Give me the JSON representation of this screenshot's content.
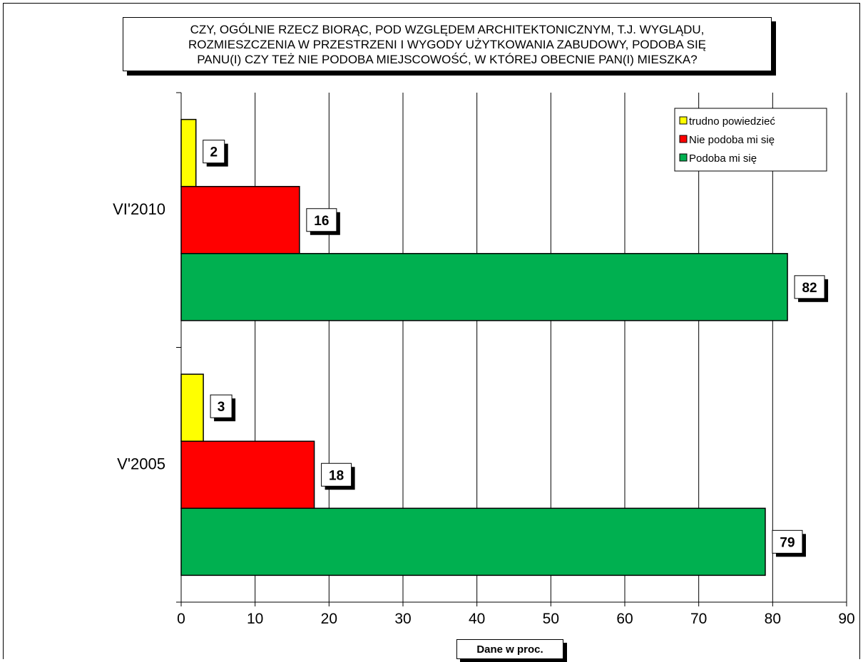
{
  "chart_data": {
    "type": "bar",
    "orientation": "horizontal",
    "title": "CZY, OGÓLNIE RZECZ BIORĄC, POD WZGLĘDEM ARCHITEKTONICZNYM, T.J. WYGLĄDU,\nROZMIESZCZENIA W PRZESTRZENI I WYGODY UŻYTKOWANIA ZABUDOWY, PODOBA SIĘ\nPANU(I) CZY TEŻ NIE PODOBA MIEJSCOWOŚĆ, W KTÓREJ OBECNIE PAN(I) MIESZKA?",
    "xlabel": "Dane w proc.",
    "categories": [
      "VI'2010",
      "V'2005"
    ],
    "series": [
      {
        "name": "trudno powiedzieć",
        "color": "#ffff00",
        "values": [
          2,
          3
        ]
      },
      {
        "name": "Nie podoba mi się",
        "color": "#ff0000",
        "values": [
          16,
          18
        ]
      },
      {
        "name": "Podoba mi się",
        "color": "#00b050",
        "values": [
          82,
          79
        ]
      }
    ],
    "xlim": [
      0,
      90
    ],
    "xticks": [
      0,
      10,
      20,
      30,
      40,
      50,
      60,
      70,
      80,
      90
    ],
    "grid": "vertical",
    "legend_position": "top-right",
    "data_labels": true
  }
}
